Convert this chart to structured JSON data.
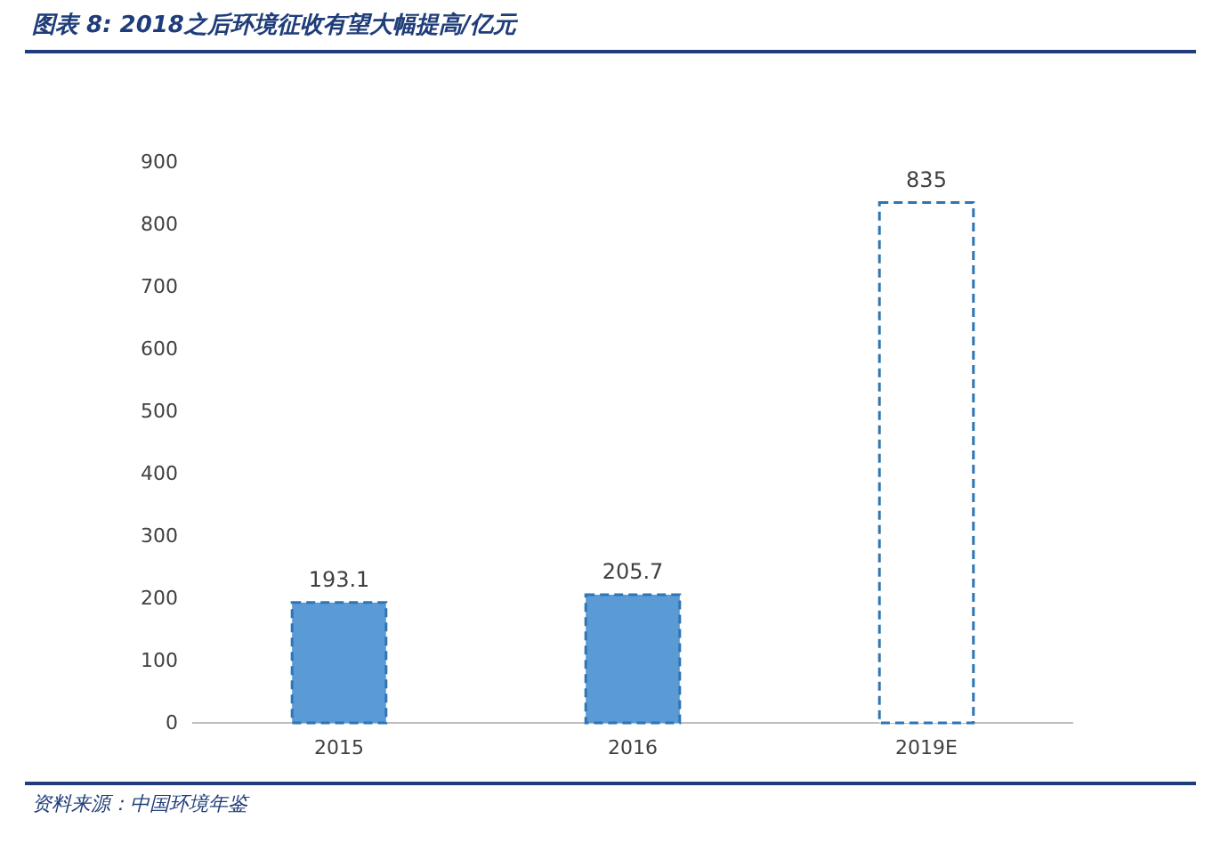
{
  "chart_data": {
    "type": "bar",
    "title": "图表 8:  2018之后环境征收有望大幅提高/亿元",
    "categories": [
      "2015",
      "2016",
      "2019E"
    ],
    "values": [
      193.1,
      205.7,
      835
    ],
    "colors": [
      "#5b9bd5",
      "#5b9bd5",
      "#ffffff"
    ],
    "ylim": [
      0,
      900
    ],
    "yticks": [
      0,
      100,
      200,
      300,
      400,
      500,
      600,
      700,
      800,
      900
    ],
    "grid": false,
    "data_labels": true,
    "annotations": [
      "资料来源：中国环境年鉴"
    ]
  }
}
